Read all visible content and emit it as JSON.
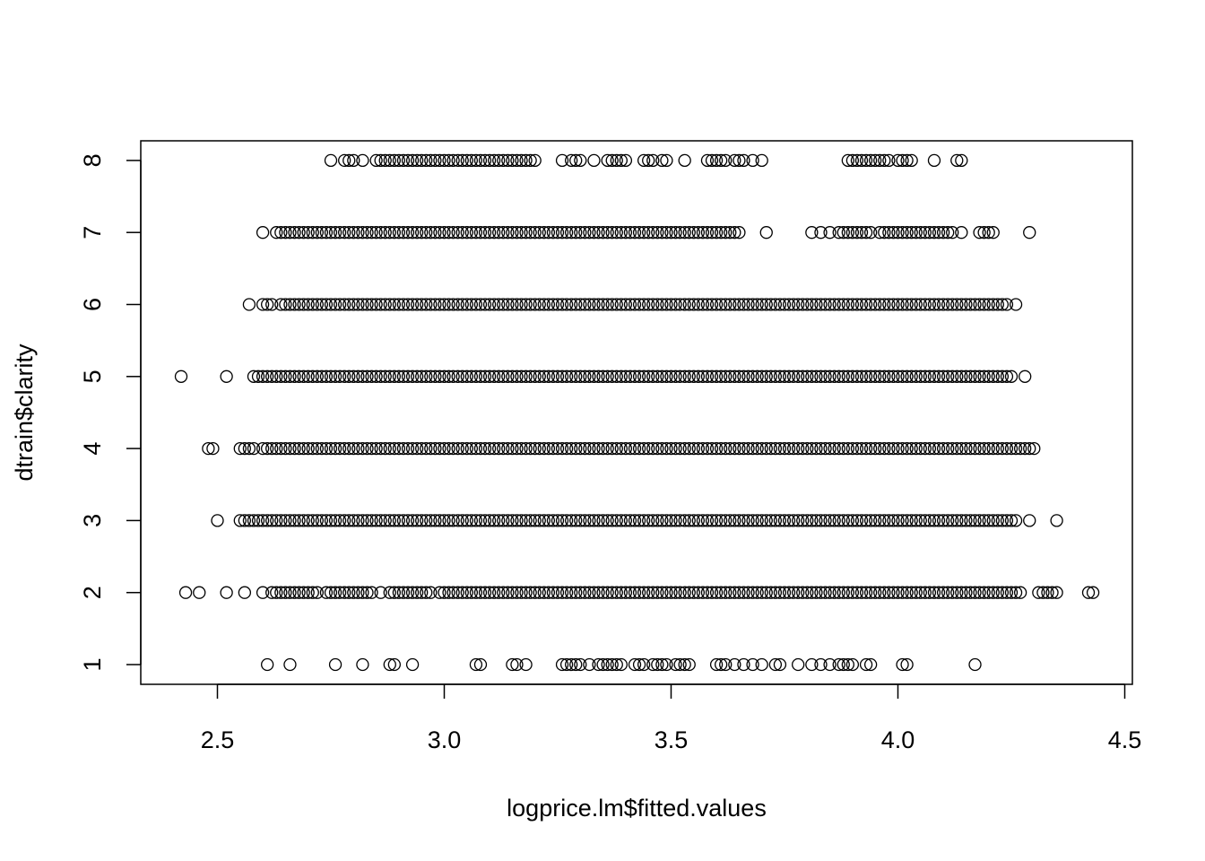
{
  "chart_data": {
    "type": "scatter",
    "title": "",
    "xlabel": "logprice.lm$fitted.values",
    "ylabel": "dtrain$clarity",
    "xlim": [
      2.35,
      4.45
    ],
    "ylim": [
      1,
      8
    ],
    "x_ticks": [
      "2.5",
      "3.0",
      "3.5",
      "4.0",
      "4.5"
    ],
    "y_ticks": [
      "1",
      "2",
      "3",
      "4",
      "5",
      "6",
      "7",
      "8"
    ],
    "grid": false,
    "marker": "open-circle",
    "point_color": "#000000",
    "series": [
      {
        "y": 1,
        "x": [
          2.61,
          2.66,
          2.76,
          2.82,
          2.88,
          2.89,
          2.93,
          3.07,
          3.08,
          3.15,
          3.16,
          3.18,
          3.26,
          3.27,
          3.28,
          3.29,
          3.3,
          3.32,
          3.34,
          3.35,
          3.36,
          3.37,
          3.38,
          3.39,
          3.42,
          3.43,
          3.44,
          3.46,
          3.47,
          3.48,
          3.49,
          3.51,
          3.52,
          3.53,
          3.54,
          3.6,
          3.61,
          3.62,
          3.64,
          3.66,
          3.68,
          3.7,
          3.73,
          3.74,
          3.78,
          3.81,
          3.83,
          3.85,
          3.87,
          3.88,
          3.89,
          3.9,
          3.93,
          3.94,
          4.01,
          4.02,
          4.17
        ]
      },
      {
        "y": 2,
        "x": [
          2.43,
          2.46,
          2.52,
          2.56,
          2.6,
          2.62,
          2.63,
          2.64,
          2.65,
          2.66,
          2.67,
          2.68,
          2.69,
          2.7,
          2.71,
          2.72,
          2.74,
          2.75,
          2.76,
          2.77,
          2.78,
          2.79,
          2.8,
          2.81,
          2.82,
          2.83,
          2.84,
          2.86,
          2.88,
          2.89,
          2.9,
          2.91,
          2.92,
          2.93,
          2.94,
          2.95,
          2.96,
          2.97,
          2.99,
          3.0,
          3.01,
          3.02,
          3.03,
          3.04,
          3.05,
          3.06,
          3.07,
          3.08,
          3.09,
          3.1,
          3.11,
          3.12,
          3.13,
          3.14,
          3.15,
          3.16,
          3.17,
          3.18,
          3.19,
          3.2,
          3.21,
          3.22,
          3.23,
          3.24,
          3.25,
          3.26,
          3.27,
          3.28,
          3.29,
          3.3,
          3.31,
          3.32,
          3.33,
          3.34,
          3.35,
          3.36,
          3.37,
          3.38,
          3.39,
          3.4,
          3.41,
          3.42,
          3.43,
          3.44,
          3.45,
          3.46,
          3.47,
          3.48,
          3.49,
          3.5,
          3.51,
          3.52,
          3.53,
          3.54,
          3.55,
          3.56,
          3.57,
          3.58,
          3.59,
          3.6,
          3.61,
          3.62,
          3.63,
          3.64,
          3.65,
          3.66,
          3.67,
          3.68,
          3.69,
          3.7,
          3.71,
          3.72,
          3.73,
          3.74,
          3.75,
          3.76,
          3.77,
          3.78,
          3.79,
          3.8,
          3.81,
          3.82,
          3.83,
          3.84,
          3.85,
          3.86,
          3.87,
          3.88,
          3.89,
          3.9,
          3.91,
          3.92,
          3.93,
          3.94,
          3.95,
          3.96,
          3.97,
          3.98,
          3.99,
          4.0,
          4.01,
          4.02,
          4.03,
          4.04,
          4.05,
          4.06,
          4.07,
          4.08,
          4.09,
          4.1,
          4.11,
          4.12,
          4.13,
          4.14,
          4.15,
          4.16,
          4.17,
          4.18,
          4.19,
          4.2,
          4.21,
          4.22,
          4.23,
          4.24,
          4.25,
          4.26,
          4.27,
          4.31,
          4.32,
          4.33,
          4.34,
          4.35,
          4.42,
          4.43
        ]
      },
      {
        "y": 3,
        "x": [
          2.5,
          2.55,
          2.56,
          2.57,
          2.58,
          2.59,
          2.6,
          2.61,
          2.62,
          2.63,
          2.64,
          2.65,
          2.66,
          2.67,
          2.68,
          2.69,
          2.7,
          2.71,
          2.72,
          2.73,
          2.74,
          2.75,
          2.76,
          2.77,
          2.78,
          2.79,
          2.8,
          2.81,
          2.82,
          2.83,
          2.84,
          2.85,
          2.86,
          2.87,
          2.88,
          2.89,
          2.9,
          2.91,
          2.92,
          2.93,
          2.94,
          2.95,
          2.96,
          2.97,
          2.98,
          2.99,
          3.0,
          3.01,
          3.02,
          3.03,
          3.04,
          3.05,
          3.06,
          3.07,
          3.08,
          3.09,
          3.1,
          3.11,
          3.12,
          3.13,
          3.14,
          3.15,
          3.16,
          3.17,
          3.18,
          3.19,
          3.2,
          3.21,
          3.22,
          3.23,
          3.24,
          3.25,
          3.26,
          3.27,
          3.28,
          3.29,
          3.3,
          3.31,
          3.32,
          3.33,
          3.34,
          3.35,
          3.36,
          3.37,
          3.38,
          3.39,
          3.4,
          3.41,
          3.42,
          3.43,
          3.44,
          3.45,
          3.46,
          3.47,
          3.48,
          3.49,
          3.5,
          3.51,
          3.52,
          3.53,
          3.54,
          3.55,
          3.56,
          3.57,
          3.58,
          3.59,
          3.6,
          3.61,
          3.62,
          3.63,
          3.64,
          3.65,
          3.66,
          3.67,
          3.68,
          3.69,
          3.7,
          3.71,
          3.72,
          3.73,
          3.74,
          3.75,
          3.76,
          3.77,
          3.78,
          3.79,
          3.8,
          3.81,
          3.82,
          3.83,
          3.84,
          3.85,
          3.86,
          3.87,
          3.88,
          3.89,
          3.9,
          3.91,
          3.92,
          3.93,
          3.94,
          3.95,
          3.96,
          3.97,
          3.98,
          3.99,
          4.0,
          4.01,
          4.02,
          4.03,
          4.04,
          4.05,
          4.06,
          4.07,
          4.08,
          4.09,
          4.1,
          4.11,
          4.12,
          4.13,
          4.14,
          4.15,
          4.16,
          4.17,
          4.18,
          4.19,
          4.2,
          4.21,
          4.22,
          4.23,
          4.24,
          4.25,
          4.26,
          4.29,
          4.35
        ]
      },
      {
        "y": 4,
        "x": [
          2.48,
          2.49,
          2.55,
          2.56,
          2.57,
          2.58,
          2.6,
          2.61,
          2.62,
          2.63,
          2.64,
          2.65,
          2.66,
          2.67,
          2.68,
          2.69,
          2.7,
          2.71,
          2.72,
          2.73,
          2.74,
          2.75,
          2.76,
          2.77,
          2.78,
          2.79,
          2.8,
          2.81,
          2.82,
          2.83,
          2.84,
          2.85,
          2.86,
          2.87,
          2.88,
          2.89,
          2.9,
          2.91,
          2.92,
          2.93,
          2.94,
          2.95,
          2.96,
          2.97,
          2.98,
          2.99,
          3.0,
          3.01,
          3.02,
          3.03,
          3.04,
          3.05,
          3.06,
          3.07,
          3.08,
          3.09,
          3.1,
          3.11,
          3.12,
          3.13,
          3.14,
          3.15,
          3.16,
          3.17,
          3.18,
          3.19,
          3.2,
          3.21,
          3.22,
          3.23,
          3.24,
          3.25,
          3.26,
          3.27,
          3.28,
          3.29,
          3.3,
          3.31,
          3.32,
          3.33,
          3.34,
          3.35,
          3.36,
          3.37,
          3.38,
          3.39,
          3.4,
          3.41,
          3.42,
          3.43,
          3.44,
          3.45,
          3.46,
          3.47,
          3.48,
          3.49,
          3.5,
          3.51,
          3.52,
          3.53,
          3.54,
          3.55,
          3.56,
          3.57,
          3.58,
          3.59,
          3.6,
          3.61,
          3.62,
          3.63,
          3.64,
          3.65,
          3.66,
          3.67,
          3.68,
          3.69,
          3.7,
          3.71,
          3.72,
          3.73,
          3.74,
          3.75,
          3.76,
          3.77,
          3.78,
          3.79,
          3.8,
          3.81,
          3.82,
          3.83,
          3.84,
          3.85,
          3.86,
          3.87,
          3.88,
          3.89,
          3.9,
          3.91,
          3.92,
          3.93,
          3.94,
          3.95,
          3.96,
          3.97,
          3.98,
          3.99,
          4.0,
          4.01,
          4.02,
          4.03,
          4.04,
          4.05,
          4.06,
          4.07,
          4.08,
          4.09,
          4.1,
          4.11,
          4.12,
          4.13,
          4.14,
          4.15,
          4.16,
          4.17,
          4.18,
          4.19,
          4.2,
          4.21,
          4.22,
          4.23,
          4.24,
          4.25,
          4.26,
          4.27,
          4.28,
          4.29,
          4.3
        ]
      },
      {
        "y": 5,
        "x": [
          2.42,
          2.52,
          2.58,
          2.59,
          2.6,
          2.61,
          2.62,
          2.63,
          2.64,
          2.65,
          2.66,
          2.67,
          2.68,
          2.69,
          2.7,
          2.71,
          2.72,
          2.73,
          2.74,
          2.75,
          2.76,
          2.77,
          2.78,
          2.79,
          2.8,
          2.81,
          2.82,
          2.83,
          2.84,
          2.85,
          2.86,
          2.87,
          2.88,
          2.89,
          2.9,
          2.91,
          2.92,
          2.93,
          2.94,
          2.95,
          2.96,
          2.97,
          2.98,
          2.99,
          3.0,
          3.01,
          3.02,
          3.03,
          3.04,
          3.05,
          3.06,
          3.07,
          3.08,
          3.09,
          3.1,
          3.11,
          3.12,
          3.13,
          3.14,
          3.15,
          3.16,
          3.17,
          3.18,
          3.19,
          3.2,
          3.21,
          3.22,
          3.23,
          3.24,
          3.25,
          3.26,
          3.27,
          3.28,
          3.29,
          3.3,
          3.31,
          3.32,
          3.33,
          3.34,
          3.35,
          3.36,
          3.37,
          3.38,
          3.39,
          3.4,
          3.41,
          3.42,
          3.43,
          3.44,
          3.45,
          3.46,
          3.47,
          3.48,
          3.49,
          3.5,
          3.51,
          3.52,
          3.53,
          3.54,
          3.55,
          3.56,
          3.57,
          3.58,
          3.59,
          3.6,
          3.61,
          3.62,
          3.63,
          3.64,
          3.65,
          3.66,
          3.67,
          3.68,
          3.69,
          3.7,
          3.71,
          3.72,
          3.73,
          3.74,
          3.75,
          3.76,
          3.77,
          3.78,
          3.79,
          3.8,
          3.81,
          3.82,
          3.83,
          3.84,
          3.85,
          3.86,
          3.87,
          3.88,
          3.89,
          3.9,
          3.91,
          3.92,
          3.93,
          3.94,
          3.95,
          3.96,
          3.97,
          3.98,
          3.99,
          4.0,
          4.01,
          4.02,
          4.03,
          4.04,
          4.05,
          4.06,
          4.07,
          4.08,
          4.09,
          4.1,
          4.11,
          4.12,
          4.13,
          4.14,
          4.15,
          4.16,
          4.17,
          4.18,
          4.19,
          4.2,
          4.21,
          4.22,
          4.23,
          4.24,
          4.25,
          4.28
        ]
      },
      {
        "y": 6,
        "x": [
          2.57,
          2.6,
          2.61,
          2.62,
          2.64,
          2.65,
          2.66,
          2.67,
          2.68,
          2.69,
          2.7,
          2.71,
          2.72,
          2.73,
          2.74,
          2.75,
          2.76,
          2.77,
          2.78,
          2.79,
          2.8,
          2.81,
          2.82,
          2.83,
          2.84,
          2.85,
          2.86,
          2.87,
          2.88,
          2.89,
          2.9,
          2.91,
          2.92,
          2.93,
          2.94,
          2.95,
          2.96,
          2.97,
          2.98,
          2.99,
          3.0,
          3.01,
          3.02,
          3.03,
          3.04,
          3.05,
          3.06,
          3.07,
          3.08,
          3.09,
          3.1,
          3.11,
          3.12,
          3.13,
          3.14,
          3.15,
          3.16,
          3.17,
          3.18,
          3.19,
          3.2,
          3.21,
          3.22,
          3.23,
          3.24,
          3.25,
          3.26,
          3.27,
          3.28,
          3.29,
          3.3,
          3.31,
          3.32,
          3.33,
          3.34,
          3.35,
          3.36,
          3.37,
          3.38,
          3.39,
          3.4,
          3.41,
          3.42,
          3.43,
          3.44,
          3.45,
          3.46,
          3.47,
          3.48,
          3.49,
          3.5,
          3.51,
          3.52,
          3.53,
          3.54,
          3.55,
          3.56,
          3.57,
          3.58,
          3.59,
          3.6,
          3.61,
          3.62,
          3.63,
          3.64,
          3.65,
          3.66,
          3.67,
          3.68,
          3.69,
          3.7,
          3.71,
          3.72,
          3.73,
          3.74,
          3.75,
          3.76,
          3.77,
          3.78,
          3.79,
          3.8,
          3.81,
          3.82,
          3.83,
          3.84,
          3.85,
          3.86,
          3.87,
          3.88,
          3.89,
          3.9,
          3.91,
          3.92,
          3.93,
          3.94,
          3.95,
          3.96,
          3.97,
          3.98,
          3.99,
          4.0,
          4.01,
          4.02,
          4.03,
          4.04,
          4.05,
          4.06,
          4.07,
          4.08,
          4.09,
          4.1,
          4.11,
          4.12,
          4.13,
          4.14,
          4.15,
          4.16,
          4.17,
          4.18,
          4.19,
          4.2,
          4.21,
          4.22,
          4.23,
          4.24,
          4.26
        ]
      },
      {
        "y": 7,
        "x": [
          2.6,
          2.63,
          2.64,
          2.65,
          2.66,
          2.67,
          2.68,
          2.69,
          2.7,
          2.71,
          2.72,
          2.73,
          2.74,
          2.75,
          2.76,
          2.77,
          2.78,
          2.79,
          2.8,
          2.81,
          2.82,
          2.83,
          2.84,
          2.85,
          2.86,
          2.87,
          2.88,
          2.89,
          2.9,
          2.91,
          2.92,
          2.93,
          2.94,
          2.95,
          2.96,
          2.97,
          2.98,
          2.99,
          3.0,
          3.01,
          3.02,
          3.03,
          3.04,
          3.05,
          3.06,
          3.07,
          3.08,
          3.09,
          3.1,
          3.11,
          3.12,
          3.13,
          3.14,
          3.15,
          3.16,
          3.17,
          3.18,
          3.19,
          3.2,
          3.21,
          3.22,
          3.23,
          3.24,
          3.25,
          3.26,
          3.27,
          3.28,
          3.29,
          3.3,
          3.31,
          3.32,
          3.33,
          3.34,
          3.35,
          3.36,
          3.37,
          3.38,
          3.39,
          3.4,
          3.41,
          3.42,
          3.43,
          3.44,
          3.45,
          3.46,
          3.47,
          3.48,
          3.49,
          3.5,
          3.51,
          3.52,
          3.53,
          3.54,
          3.55,
          3.56,
          3.57,
          3.58,
          3.59,
          3.6,
          3.61,
          3.62,
          3.63,
          3.64,
          3.65,
          3.71,
          3.81,
          3.83,
          3.85,
          3.87,
          3.88,
          3.89,
          3.9,
          3.91,
          3.92,
          3.93,
          3.94,
          3.96,
          3.97,
          3.98,
          3.99,
          4.0,
          4.01,
          4.02,
          4.03,
          4.04,
          4.05,
          4.06,
          4.07,
          4.08,
          4.09,
          4.1,
          4.11,
          4.12,
          4.14,
          4.18,
          4.19,
          4.2,
          4.21,
          4.29
        ]
      },
      {
        "y": 8,
        "x": [
          2.75,
          2.78,
          2.79,
          2.8,
          2.82,
          2.85,
          2.86,
          2.87,
          2.88,
          2.89,
          2.9,
          2.91,
          2.92,
          2.93,
          2.94,
          2.95,
          2.96,
          2.97,
          2.98,
          2.99,
          3.0,
          3.01,
          3.02,
          3.03,
          3.04,
          3.05,
          3.06,
          3.07,
          3.08,
          3.09,
          3.1,
          3.11,
          3.12,
          3.13,
          3.14,
          3.15,
          3.16,
          3.17,
          3.18,
          3.19,
          3.2,
          3.26,
          3.28,
          3.29,
          3.3,
          3.33,
          3.36,
          3.37,
          3.38,
          3.39,
          3.4,
          3.44,
          3.45,
          3.46,
          3.48,
          3.49,
          3.53,
          3.58,
          3.59,
          3.6,
          3.61,
          3.62,
          3.64,
          3.65,
          3.66,
          3.68,
          3.7,
          3.89,
          3.9,
          3.91,
          3.92,
          3.93,
          3.94,
          3.95,
          3.96,
          3.97,
          3.98,
          4.0,
          4.01,
          4.02,
          4.03,
          4.08,
          4.13,
          4.14
        ]
      }
    ]
  }
}
